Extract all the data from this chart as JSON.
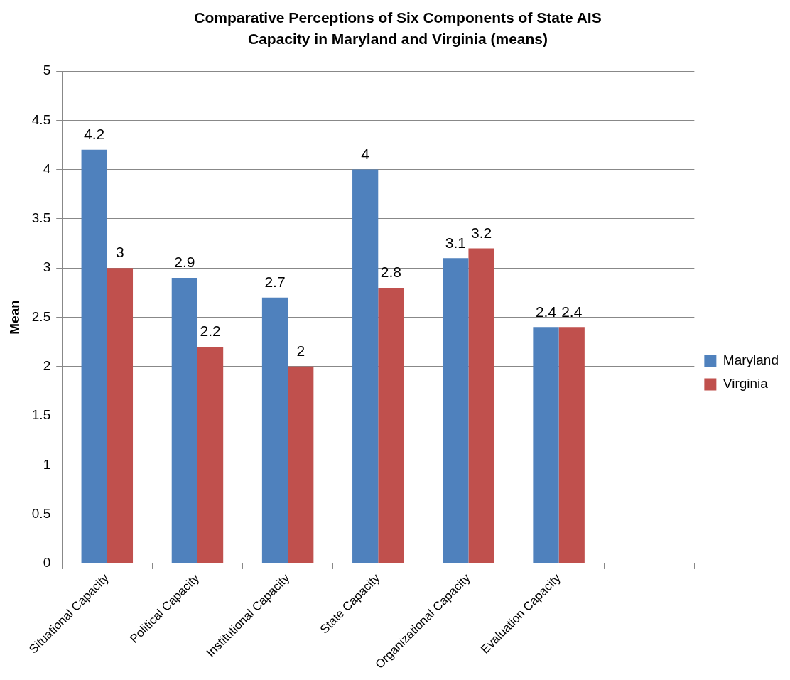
{
  "chart_data": {
    "type": "bar",
    "title": "Comparative Perceptions of Six Components of State AIS Capacity in Maryland and Virginia (means)",
    "ylabel": "Mean",
    "categories": [
      "Situational Capacity",
      "Political Capacity",
      "Institutional Capacity",
      "State Capacity",
      "Organizational Capacity",
      "Evaluation Capacity",
      null
    ],
    "series": [
      {
        "name": "Maryland",
        "color": "#4f81bd",
        "values": [
          4.2,
          2.9,
          2.7,
          4,
          3.1,
          2.4,
          null
        ]
      },
      {
        "name": "Virginia",
        "color": "#c0504d",
        "values": [
          3,
          2.2,
          2,
          2.8,
          3.2,
          2.4,
          null
        ]
      }
    ],
    "ylim": [
      0,
      5
    ],
    "yticks": [
      0,
      0.5,
      1,
      1.5,
      2,
      2.5,
      3,
      3.5,
      4,
      4.5,
      5
    ],
    "grid": "y",
    "legend": "right",
    "data_labels": true
  }
}
